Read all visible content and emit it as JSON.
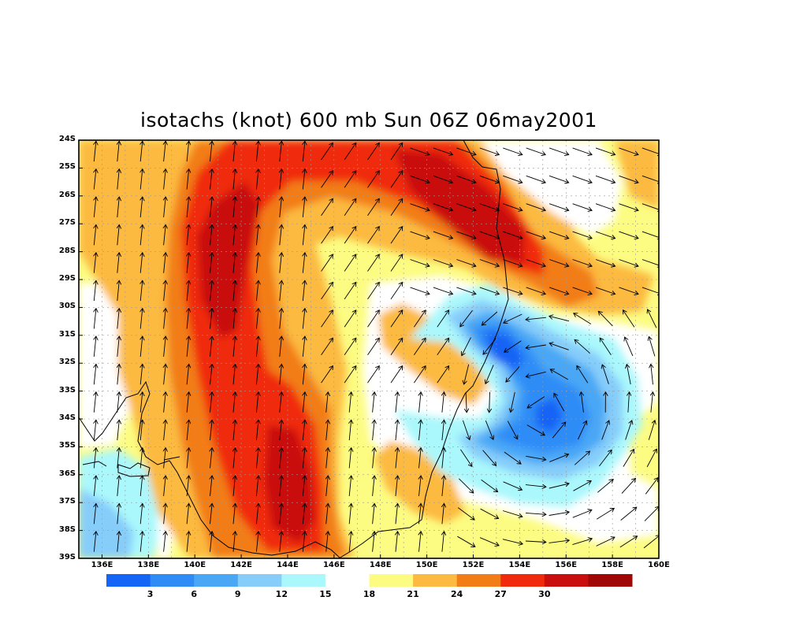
{
  "title": "isotachs (knot) 600 mb Sun 06Z 06may2001",
  "lat_labels": [
    "24S",
    "25S",
    "26S",
    "27S",
    "28S",
    "29S",
    "30S",
    "31S",
    "32S",
    "33S",
    "34S",
    "35S",
    "36S",
    "37S",
    "38S",
    "39S"
  ],
  "lon_labels": [
    "136E",
    "138E",
    "140E",
    "142E",
    "144E",
    "146E",
    "148E",
    "150E",
    "152E",
    "154E",
    "156E",
    "158E",
    "160E"
  ],
  "colorbar": {
    "colors": [
      "#1464f5",
      "#2f8cf7",
      "#4aa7f5",
      "#86cdfa",
      "#aaf8fc",
      "#ffffff",
      "#fcfc82",
      "#fcba40",
      "#f27d16",
      "#f02a0c",
      "#c90e0e",
      "#a00808"
    ],
    "labels": [
      "3",
      "6",
      "9",
      "12",
      "15",
      "18",
      "21",
      "24",
      "27",
      "30"
    ]
  },
  "field_colors": {
    "calm_core": "#1464f5",
    "speed_15_18": "#ffffff",
    "speed_18_21": "#fcfc82",
    "speed_21_24": "#fcba40",
    "speed_24_27": "#f27d16",
    "speed_27_30": "#f02a0c",
    "speed_30_plus": "#c90e0e"
  },
  "map_extent": {
    "lon_min": 135.0,
    "lon_max": 160.0,
    "lat_min": -39.0,
    "lat_max": -24.0
  },
  "jet_features": [
    {
      "name": "western-jet-core",
      "lon": 141.5,
      "lat": -28.5,
      "level": "30+"
    },
    {
      "name": "southern-jet-core",
      "lon": 144.0,
      "lat": -36.5,
      "level": "30+"
    },
    {
      "name": "northeast-jet-core",
      "lon": 151.0,
      "lat": -26.5,
      "level": "27-30"
    },
    {
      "name": "calm-low-center",
      "lon": 155.0,
      "lat": -34.0,
      "level": "0-3"
    }
  ]
}
